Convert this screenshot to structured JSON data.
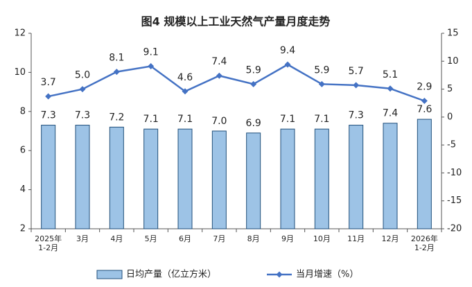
{
  "chart_data": {
    "type": "combo",
    "title": "图4  规模以上工业天然气产量月度走势",
    "categories": [
      "2025年\n1-2月",
      "3月",
      "4月",
      "5月",
      "6月",
      "7月",
      "8月",
      "9月",
      "10月",
      "11月",
      "12月",
      "2026年\n1-2月"
    ],
    "ylim": [
      2,
      12
    ],
    "yticks": [
      2,
      4,
      6,
      8,
      10,
      12
    ],
    "y2lim": [
      -20,
      15
    ],
    "y2ticks": [
      -20,
      -15,
      -10,
      -5,
      0,
      5,
      10,
      15
    ],
    "grid": false,
    "legend": "bottom",
    "series": [
      {
        "name": "日均产量（亿立方米）",
        "type": "bar",
        "color": "#9dc3e6",
        "edge": "#1f4e79",
        "values": [
          7.3,
          7.3,
          7.2,
          7.1,
          7.1,
          7.0,
          6.9,
          7.1,
          7.1,
          7.3,
          7.4,
          7.6
        ],
        "value_labels": [
          "7.3",
          "7.3",
          "7.2",
          "7.1",
          "7.1",
          "7.0",
          "6.9",
          "7.1",
          "7.1",
          "7.3",
          "7.4",
          "7.6"
        ]
      },
      {
        "name": "当月增速（%）",
        "type": "line",
        "axis": "y2",
        "color": "#4472c4",
        "values": [
          3.7,
          5.0,
          8.1,
          9.1,
          4.6,
          7.4,
          5.9,
          9.4,
          5.9,
          5.7,
          5.1,
          2.9
        ],
        "value_labels": [
          "3.7",
          "5.0",
          "8.1",
          "9.1",
          "4.6",
          "7.4",
          "5.9",
          "9.4",
          "5.9",
          "5.7",
          "5.1",
          "2.9"
        ]
      }
    ]
  }
}
